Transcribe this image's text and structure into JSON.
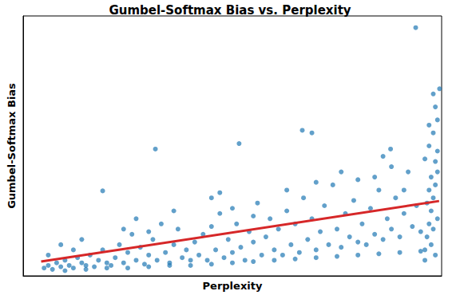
{
  "chart_data": {
    "type": "scatter",
    "title": "Gumbel-Softmax Bias vs. Perplexity",
    "x_label": "Perplexity",
    "y_label": "Gumbel-Softmax Bias",
    "xlim": [
      0,
      100
    ],
    "ylim": [
      0,
      100
    ],
    "tick_labels": false,
    "grid": false,
    "series": [
      {
        "type": "scatter",
        "color": "#1f77b4",
        "marker": "circle",
        "x": [
          5,
          6,
          7,
          8,
          9,
          10,
          11,
          12,
          13,
          14,
          15,
          16,
          17,
          18,
          19,
          20,
          6,
          9,
          12,
          14,
          21,
          22,
          23,
          24,
          25,
          26,
          27,
          28,
          29,
          30,
          31,
          32,
          33,
          34,
          35,
          36,
          37,
          38,
          39,
          40,
          27,
          36,
          24,
          30,
          41,
          42,
          43,
          44,
          45,
          46,
          47,
          48,
          49,
          50,
          51,
          52,
          53,
          54,
          55,
          56,
          57,
          58,
          59,
          60,
          45,
          50,
          55,
          47,
          61,
          62,
          63,
          64,
          65,
          66,
          67,
          68,
          69,
          70,
          71,
          72,
          73,
          74,
          75,
          76,
          77,
          78,
          79,
          80,
          63,
          70,
          76,
          80,
          81,
          82,
          83,
          84,
          85,
          86,
          87,
          88,
          89,
          90,
          91,
          92,
          93,
          94,
          95,
          84,
          88,
          91,
          93.8,
          86,
          96,
          96.5,
          97,
          97.5,
          98,
          98.5,
          99,
          96,
          97,
          98,
          99,
          98.5,
          97.5,
          98,
          99,
          96.5,
          97,
          98.5,
          99,
          97.5,
          98,
          99.5,
          96,
          97,
          98.5,
          10,
          20,
          30,
          40,
          50,
          60,
          70,
          80,
          90,
          15,
          25,
          35,
          45,
          55,
          65,
          75,
          85,
          95,
          19,
          31.6,
          51.6,
          66.7,
          69,
          87.8
        ],
        "values": [
          3,
          4,
          2.5,
          5,
          3.5,
          6,
          4,
          3,
          7,
          5,
          4,
          8,
          3.5,
          6,
          10,
          5,
          8,
          12,
          10,
          14,
          4,
          7,
          12,
          5,
          9,
          16,
          6,
          11,
          4.5,
          8,
          14,
          6,
          20,
          9,
          5,
          12,
          18,
          7,
          10,
          6,
          22,
          25,
          18,
          17,
          13,
          8,
          16,
          6,
          19,
          10,
          24,
          7,
          14,
          9,
          20,
          11,
          6,
          17,
          13,
          28,
          8,
          15,
          22,
          10,
          30,
          26,
          23,
          32,
          18,
          8,
          25,
          12,
          20,
          9,
          30,
          14,
          22,
          10,
          17,
          27,
          12,
          35,
          18,
          11,
          24,
          15,
          29,
          13,
          33,
          36,
          40,
          37,
          20,
          12,
          26,
          16,
          33,
          14,
          22,
          18,
          30,
          15,
          24,
          40,
          19,
          27,
          17,
          38,
          42,
          33,
          95.5,
          46,
          10,
          15,
          20,
          25,
          30,
          35,
          40,
          45,
          50,
          55,
          60,
          65,
          12,
          18,
          22,
          28,
          33,
          8,
          48,
          38,
          70,
          72,
          6,
          58,
          44,
          2,
          3,
          3.5,
          4,
          5,
          6,
          7,
          8,
          9,
          2.5,
          3,
          4,
          4.5,
          5.5,
          6.5,
          7.5,
          8.5,
          9.5,
          32.7,
          48.8,
          50.9,
          56,
          55,
          48.8
        ]
      },
      {
        "type": "line",
        "color": "#d62728",
        "line_style": "solid",
        "x": [
          4.3,
          99.4
        ],
        "values": [
          5.5,
          28.8
        ]
      }
    ]
  }
}
